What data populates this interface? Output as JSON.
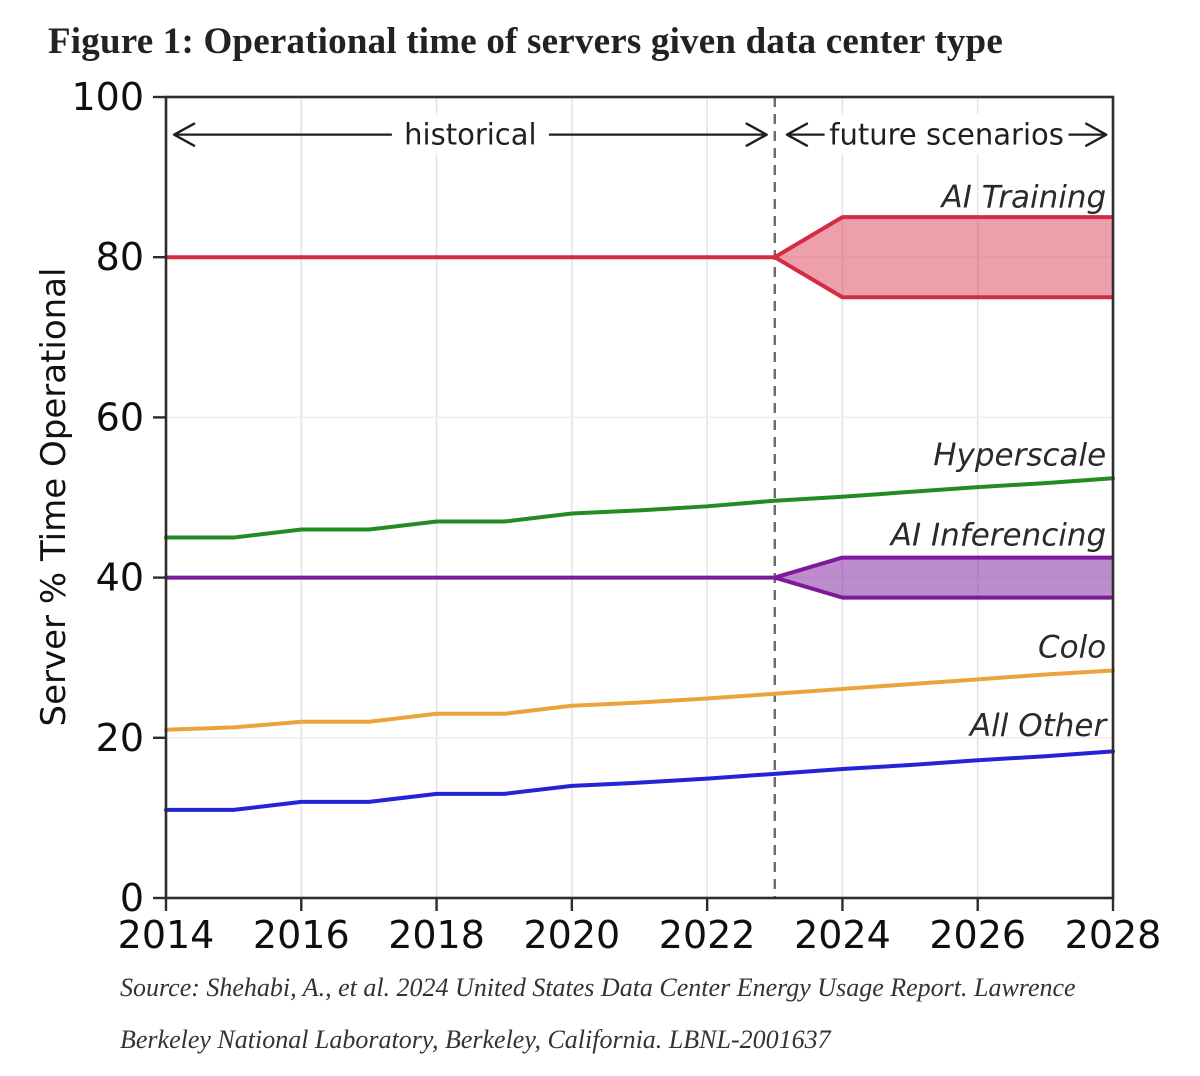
{
  "page": {
    "title": "Figure 1: Operational time of servers given data center type",
    "source_line1": "Source: Shehabi, A., et al. 2024 United States Data Center Energy Usage Report. Lawrence",
    "source_line2": "Berkeley National Laboratory, Berkeley, California. LBNL-2001637"
  },
  "chart_data": {
    "type": "line",
    "title": "Figure 1: Operational time of servers given data center type",
    "xlabel": "",
    "ylabel": "Server % Time Operational",
    "xlim": [
      2014,
      2028
    ],
    "ylim": [
      0,
      100
    ],
    "x_ticks": [
      2014,
      2016,
      2018,
      2020,
      2022,
      2024,
      2026,
      2028
    ],
    "y_ticks": [
      0,
      20,
      40,
      60,
      80,
      100
    ],
    "grid": true,
    "divider": {
      "x": 2023,
      "color": "#6a6a6a",
      "dash": "10 7"
    },
    "annotations": [
      {
        "label": "historical",
        "x_start": 2014.12,
        "x_end": 2022.88,
        "y": 95.3
      },
      {
        "label": "future scenarios",
        "x_start": 2023.18,
        "x_end": 2027.9,
        "y": 95.3
      }
    ],
    "x_years": [
      2014,
      2015,
      2016,
      2017,
      2018,
      2019,
      2020,
      2021,
      2022,
      2023,
      2024,
      2025,
      2026,
      2027,
      2028
    ],
    "series": [
      {
        "name": "AI Training",
        "color": "#d62b45",
        "fill_opacity": 0.45,
        "label": {
          "text": "AI Training",
          "x": 2027.9,
          "y": 86.2
        },
        "line": {
          "x": [
            2014,
            2023
          ],
          "y": [
            80,
            80
          ]
        },
        "band": {
          "x": [
            2023,
            2024,
            2028
          ],
          "upper": [
            80,
            85,
            85
          ],
          "lower": [
            80,
            75,
            75
          ]
        }
      },
      {
        "name": "Hyperscale",
        "color": "#228b22",
        "label": {
          "text": "Hyperscale",
          "x": 2027.9,
          "y": 54.0
        },
        "line": {
          "x": [
            2014,
            2015,
            2016,
            2017,
            2018,
            2019,
            2020,
            2021,
            2022,
            2023,
            2024,
            2025,
            2026,
            2027,
            2028
          ],
          "y": [
            45,
            45,
            46,
            46,
            47,
            47,
            48,
            48.4,
            48.9,
            49.6,
            50.1,
            50.7,
            51.3,
            51.8,
            52.4
          ]
        }
      },
      {
        "name": "AI Inferencing",
        "color": "#7c1a99",
        "fill_opacity": 0.5,
        "label": {
          "text": "AI Inferencing",
          "x": 2027.9,
          "y": 44.0
        },
        "line": {
          "x": [
            2014,
            2023
          ],
          "y": [
            40,
            40
          ]
        },
        "band": {
          "x": [
            2023,
            2024,
            2028
          ],
          "upper": [
            40,
            42.5,
            42.5
          ],
          "lower": [
            40,
            37.5,
            37.5
          ]
        }
      },
      {
        "name": "Colo",
        "color": "#eda33b",
        "label": {
          "text": "Colo",
          "x": 2027.9,
          "y": 30.0
        },
        "line": {
          "x": [
            2014,
            2015,
            2016,
            2017,
            2018,
            2019,
            2020,
            2021,
            2022,
            2023,
            2024,
            2025,
            2026,
            2027,
            2028
          ],
          "y": [
            21,
            21.3,
            22,
            22,
            23,
            23,
            24,
            24.4,
            24.9,
            25.5,
            26.1,
            26.7,
            27.3,
            27.9,
            28.4
          ]
        }
      },
      {
        "name": "All Other",
        "color": "#2424d6",
        "label": {
          "text": "All Other",
          "x": 2027.9,
          "y": 20.2
        },
        "line": {
          "x": [
            2014,
            2015,
            2016,
            2017,
            2018,
            2019,
            2020,
            2021,
            2022,
            2023,
            2024,
            2025,
            2026,
            2027,
            2028
          ],
          "y": [
            11,
            11,
            12,
            12,
            13,
            13,
            14,
            14.4,
            14.9,
            15.5,
            16.1,
            16.6,
            17.2,
            17.7,
            18.3
          ]
        }
      }
    ]
  }
}
